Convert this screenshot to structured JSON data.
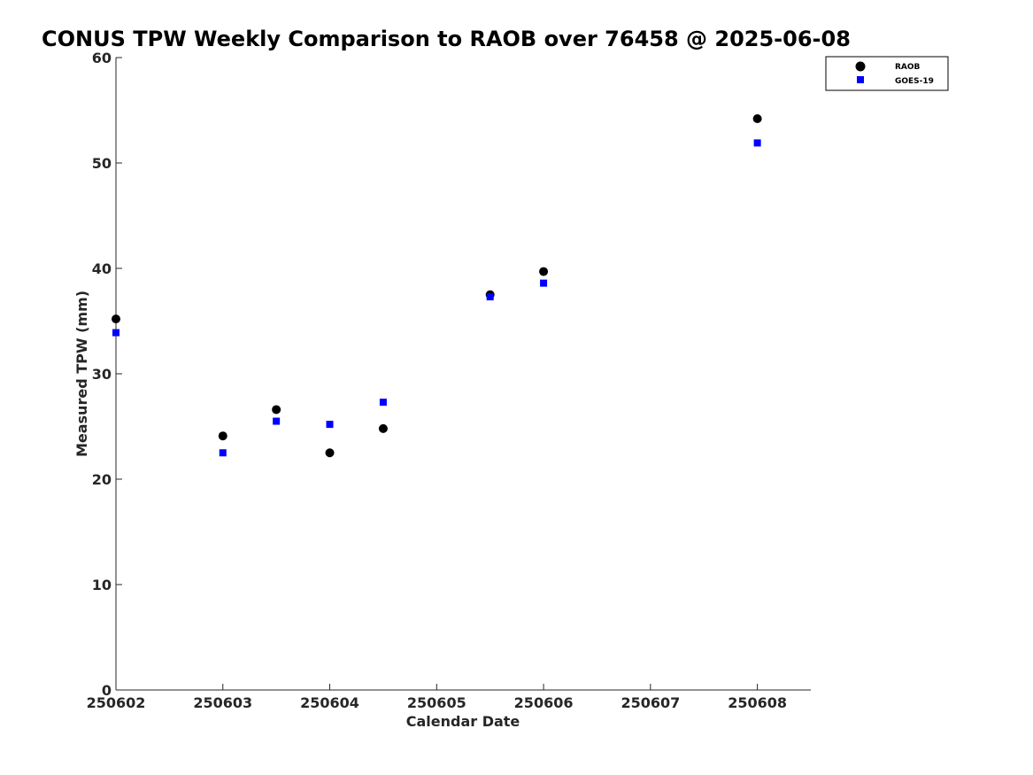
{
  "chart_data": {
    "type": "scatter",
    "title": "CONUS TPW Weekly Comparison to RAOB over 76458 @ 2025-06-08",
    "xlabel": "Calendar Date",
    "ylabel": "Measured TPW (mm)",
    "xlim": [
      250602,
      250608.5
    ],
    "ylim": [
      0,
      60
    ],
    "x_ticks": [
      250602,
      250603,
      250604,
      250605,
      250606,
      250607,
      250608
    ],
    "x_tick_labels": [
      "250602",
      "250603",
      "250604",
      "250605",
      "250606",
      "250607",
      "250608"
    ],
    "y_ticks": [
      0,
      10,
      20,
      30,
      40,
      50,
      60
    ],
    "y_tick_labels": [
      "0",
      "10",
      "20",
      "30",
      "40",
      "50",
      "60"
    ],
    "grid": false,
    "legend_position": "top-right",
    "series": [
      {
        "name": "RAOB",
        "marker": "circle",
        "color": "#000000",
        "x": [
          250602,
          250603,
          250603.5,
          250604,
          250604.5,
          250605.5,
          250606,
          250608
        ],
        "y": [
          35.2,
          24.1,
          26.6,
          22.5,
          24.8,
          37.5,
          39.7,
          54.2
        ]
      },
      {
        "name": "GOES-19",
        "marker": "square",
        "color": "#0000ff",
        "x": [
          250602,
          250603,
          250603.5,
          250604,
          250604.5,
          250605.5,
          250606,
          250608
        ],
        "y": [
          33.9,
          22.5,
          25.5,
          25.2,
          27.3,
          37.3,
          38.6,
          51.9
        ]
      }
    ]
  }
}
